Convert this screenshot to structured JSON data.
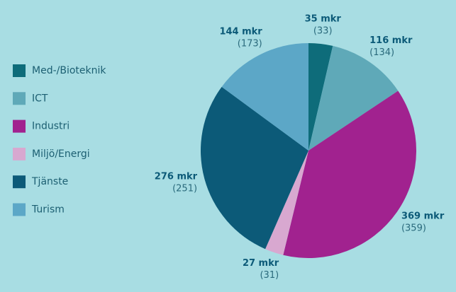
{
  "chart_data": {
    "type": "pie",
    "categories": [
      "Med-/Bioteknik",
      "ICT",
      "Industri",
      "Miljö/Energi",
      "Tjänste",
      "Turism"
    ],
    "colors": [
      "#0e6c7a",
      "#5fa9b8",
      "#a1228f",
      "#d8a8d0",
      "#0c5a78",
      "#5ca7c7"
    ],
    "values": [
      35,
      116,
      369,
      27,
      276,
      144
    ],
    "value_labels": [
      "35 mkr",
      "116 mkr",
      "369 mkr",
      "27 mkr",
      "276 mkr",
      "144 mkr"
    ],
    "previous_values": [
      33,
      134,
      359,
      31,
      251,
      173
    ],
    "previous_value_labels": [
      "(33)",
      "(134)",
      "(359)",
      "(31)",
      "(251)",
      "(173)"
    ],
    "legend": "left"
  }
}
